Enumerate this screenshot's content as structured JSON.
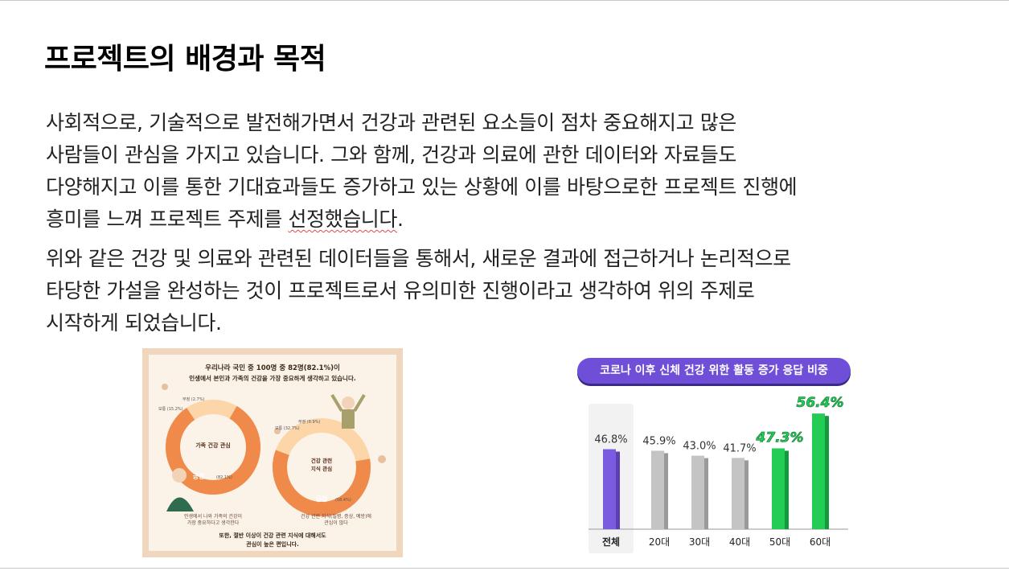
{
  "slide": {
    "title": "프로젝트의 배경과 목적",
    "paragraph1": [
      " 사회적으로, 기술적으로 발전해가면서 건강과 관련된 요소들이 점차 중요해지고 많은",
      "사람들이 관심을 가지고 있습니다. 그와 함께, 건강과 의료에 관한 데이터와 자료들도",
      "다양해지고 이를 통한 기대효과들도 증가하고 있는 상황에 이를 바탕으로한 프로젝트 진행에",
      "흥미를 느껴 프로젝트 주제를 "
    ],
    "paragraph1_underlined": "선정했습니다",
    "paragraph1_end": ".",
    "paragraph2": [
      " 위와 같은 건강 및 의료와 관련된 데이터들을 통해서, 새로운 결과에 접근하거나 논리적으로",
      "타당한 가설을 완성하는 것이 프로젝트로서 유의미한 진행이라고 생각하여 위의 주제로",
      "시작하게 되었습니다."
    ]
  },
  "infographic": {
    "headline1": "우리나라 국민 중 100명 중 82명(82.1%)이",
    "headline2": "인생에서 본인과 가족의 건강을 가장 중요하게 생각하고 있습니다.",
    "donut1_label": "가족 건강 관심",
    "donut1_positive": "긍정",
    "donut1_positive_pct": "(82.1%)",
    "donut1_neutral": "보통 (15.2%)",
    "donut1_negative": "부정 (2.7%)",
    "donut2_label_line1": "건강 관련",
    "donut2_label_line2": "지식 관심",
    "donut2_positive": "긍정",
    "donut2_positive_pct": "(58.4%)",
    "donut2_neutral": "보통 (32.7%)",
    "donut2_negative": "부정 (8.9%)",
    "caption1_line1": "인생에서 나와 가족의 건강이",
    "caption1_line2": "가장 중요하다고 생각한다",
    "caption2_line1": "건강 관련 지식(질병, 증상, 예방)에",
    "caption2_line2": "관심이 많다",
    "footer1": "또한, 절반 이상이 건강 관련 지식에 대해서도",
    "footer2": "관심이 높은 편입니다.",
    "colors": {
      "orange": "#f08a4b",
      "light": "#fcd6a8",
      "frame": "#f0d6bc"
    }
  },
  "chart": {
    "title": "코로나 이후 신체 건강 위한 활동 증가 응답 비중"
  },
  "chart_data": {
    "type": "bar",
    "title": "코로나 이후 신체 건강 위한 활동 증가 응답 비중",
    "categories": [
      "전체",
      "20대",
      "30대",
      "40대",
      "50대",
      "60대"
    ],
    "values": [
      46.8,
      45.9,
      43.0,
      41.7,
      47.3,
      56.4
    ],
    "value_labels": [
      "46.8%",
      "45.9%",
      "43.0%",
      "41.7%",
      "47.3%",
      "56.4%"
    ],
    "colors": [
      "#7a5ce0",
      "#c4c4c4",
      "#c4c4c4",
      "#c4c4c4",
      "#22cc55",
      "#22cc55"
    ],
    "ylim": [
      0,
      60
    ],
    "grid": false
  }
}
